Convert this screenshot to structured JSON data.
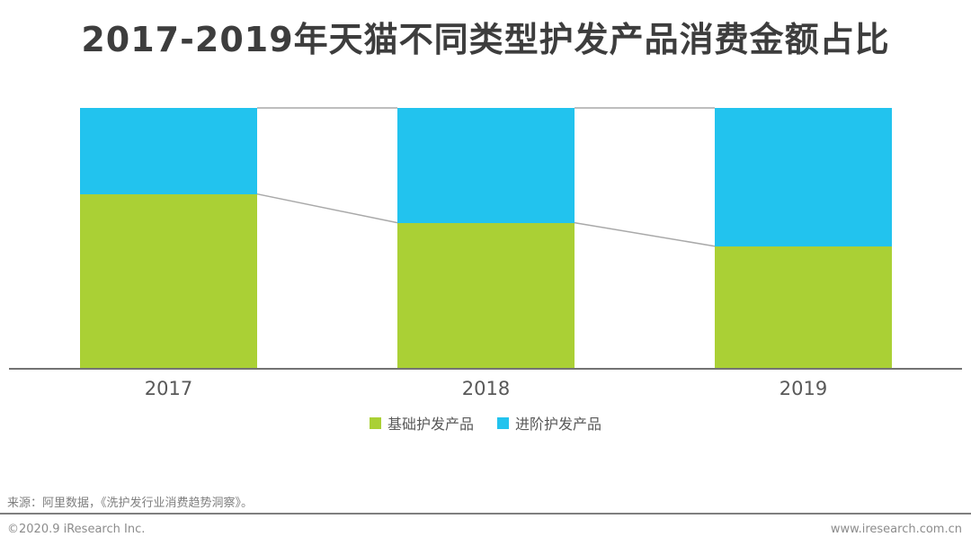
{
  "page": {
    "background": "#ffffff"
  },
  "chart_data": {
    "type": "bar",
    "variant": "stacked-100-percent-column",
    "title": "2017-2019年天猫不同类型护发产品消费金额占比",
    "categories": [
      "2017",
      "2018",
      "2019"
    ],
    "series": [
      {
        "name": "基础护发产品",
        "color": "#aad035",
        "values": [
          67,
          56,
          47
        ]
      },
      {
        "name": "进阶护发产品",
        "color": "#22c3ee",
        "values": [
          33,
          44,
          53
        ]
      }
    ],
    "unit": "% of total consumption amount",
    "ylim": [
      0,
      100
    ],
    "y_axis_visible": false,
    "grid": false,
    "legend_position": "bottom-center",
    "connector_lines": true,
    "colors": {
      "title": "#3d3d3d",
      "axis_line": "#737373",
      "connector_line": "#a9a9a9",
      "x_tick_label": "#595959",
      "legend_text": "#595959"
    }
  },
  "footer": {
    "source": "来源：阿里数据，《洗护发行业消费趋势洞察》。",
    "copyright": "©2020.9 iResearch Inc.",
    "website": "www.iresearch.com.cn"
  }
}
